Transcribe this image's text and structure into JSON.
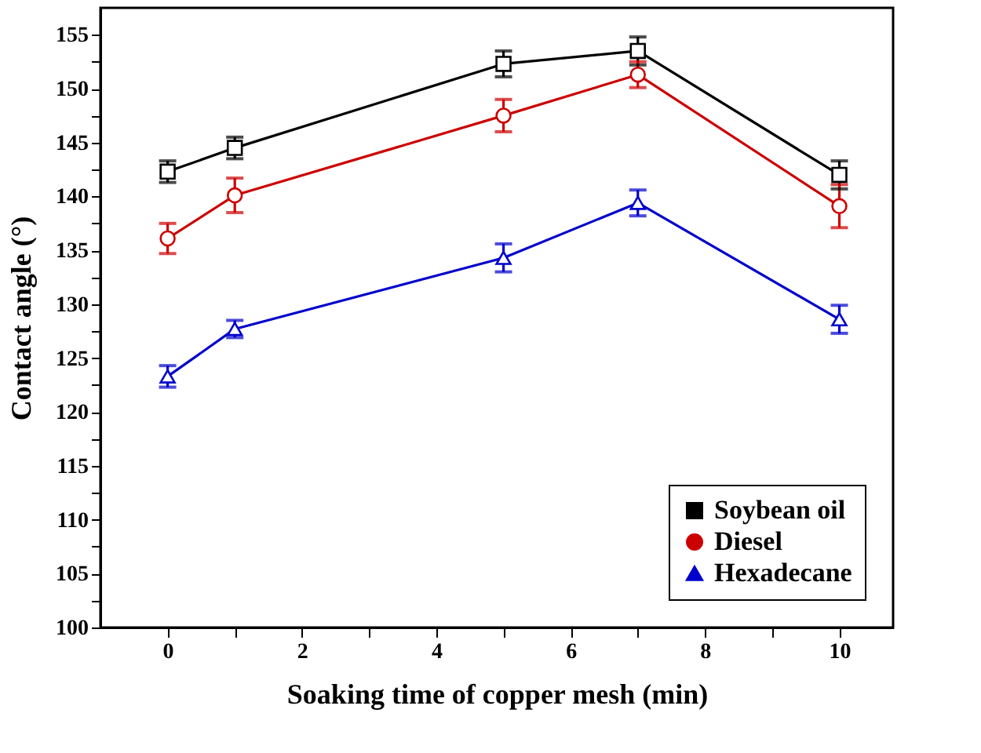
{
  "chart_data": {
    "type": "line",
    "xlabel": "Soaking time of copper mesh (min)",
    "ylabel": "Contact angle (°)",
    "x": [
      0,
      1,
      5,
      7,
      10
    ],
    "series": [
      {
        "name": "Soybean oil",
        "color": "#000000",
        "marker": "square",
        "values": [
          142.3,
          144.5,
          152.3,
          153.5,
          142.0
        ],
        "errors": [
          1.0,
          1.0,
          1.2,
          1.3,
          1.3
        ]
      },
      {
        "name": "Diesel",
        "color": "#cc0000",
        "marker": "circle",
        "values": [
          136.1,
          140.1,
          147.5,
          151.3,
          139.1
        ],
        "errors": [
          1.4,
          1.6,
          1.5,
          1.2,
          2.0
        ]
      },
      {
        "name": "Hexadecane",
        "color": "#0000cc",
        "marker": "triangle",
        "values": [
          123.3,
          127.7,
          134.3,
          139.4,
          128.6
        ],
        "errors": [
          1.0,
          0.8,
          1.3,
          1.2,
          1.3
        ]
      }
    ],
    "xlim": [
      -1,
      10.8
    ],
    "ylim": [
      100,
      157.5
    ],
    "xticks": [
      0,
      {
        "value": 1,
        "label": null
      },
      2,
      {
        "value": 3,
        "label": null
      },
      4,
      {
        "value": 5,
        "label": null
      },
      6,
      {
        "value": 7,
        "label": null
      },
      8,
      {
        "value": 9,
        "label": null
      },
      10
    ],
    "yticks": [
      100,
      {
        "value": 102.5,
        "label": null
      },
      105,
      {
        "value": 107.5,
        "label": null
      },
      110,
      {
        "value": 112.5,
        "label": null
      },
      115,
      {
        "value": 117.5,
        "label": null
      },
      120,
      {
        "value": 122.5,
        "label": null
      },
      125,
      {
        "value": 127.5,
        "label": null
      },
      130,
      {
        "value": 132.5,
        "label": null
      },
      135,
      {
        "value": 137.5,
        "label": null
      },
      140,
      {
        "value": 142.5,
        "label": null
      },
      145,
      {
        "value": 147.5,
        "label": null
      },
      150,
      {
        "value": 152.5,
        "label": null
      },
      155
    ],
    "legend": "bottom right",
    "grid": false,
    "line_style": "solid"
  }
}
